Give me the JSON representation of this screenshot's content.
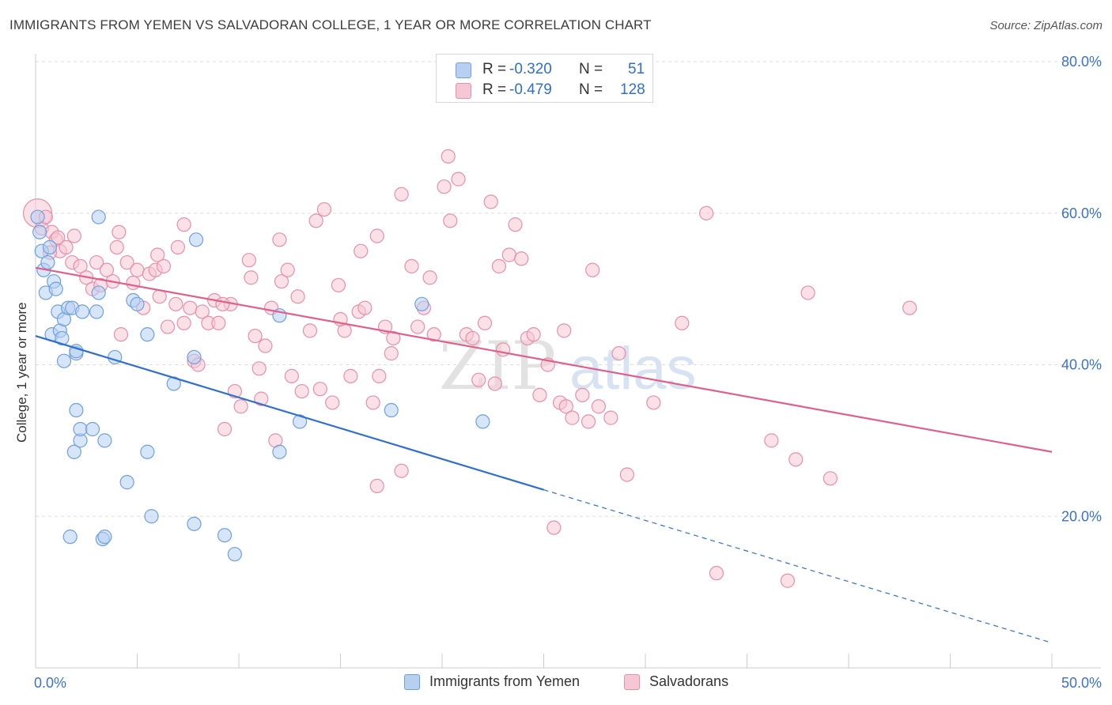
{
  "title": "IMMIGRANTS FROM YEMEN VS SALVADORAN COLLEGE, 1 YEAR OR MORE CORRELATION CHART",
  "source": "Source: ZipAtlas.com",
  "watermark": "ZIPatlas",
  "colors": {
    "blue": "#6fa0de",
    "blue_fill": "#b7d0f2",
    "blue_line": "#2f6fce",
    "pink": "#e88fab",
    "pink_fill": "#f6c6d4",
    "pink_line": "#e0608b",
    "axis_text": "#3a72cc",
    "grid": "#dddddd"
  },
  "stats": {
    "rows": [
      {
        "r_label": "R =",
        "r_value": "-0.320",
        "n_label": "N =",
        "n_value": "51"
      },
      {
        "r_label": "R =",
        "r_value": "-0.479",
        "n_label": "N =",
        "n_value": "128"
      }
    ]
  },
  "legend": {
    "series1": "Immigrants from Yemen",
    "series2": "Salvadorans"
  },
  "chart_data": {
    "type": "scatter",
    "title": "IMMIGRANTS FROM YEMEN VS SALVADORAN COLLEGE, 1 YEAR OR MORE CORRELATION CHART",
    "xlabel": "",
    "ylabel": "College, 1 year or more",
    "xlim": [
      0,
      50
    ],
    "ylim": [
      0,
      80
    ],
    "x_tick_labels": [
      "0.0%",
      "50.0%"
    ],
    "y_tick_labels": [
      "20.0%",
      "40.0%",
      "60.0%",
      "80.0%"
    ],
    "y_ticks": [
      20,
      40,
      60,
      80
    ],
    "grid": true,
    "legend_position": "bottom",
    "series": [
      {
        "name": "Immigrants from Yemen",
        "color": "#6fa0de",
        "trend": {
          "x0": 0,
          "y0": 43.8,
          "x1": 25,
          "y1": 23.5,
          "dashed_to_x": 50,
          "dashed_to_y": 3.3
        },
        "points": [
          [
            0.1,
            59.5
          ],
          [
            0.2,
            57.5
          ],
          [
            0.3,
            55.0
          ],
          [
            0.4,
            52.5
          ],
          [
            0.5,
            49.5
          ],
          [
            0.6,
            53.5
          ],
          [
            0.7,
            55.5
          ],
          [
            0.8,
            44.0
          ],
          [
            0.9,
            51.0
          ],
          [
            1.0,
            50.0
          ],
          [
            1.1,
            47.0
          ],
          [
            1.2,
            44.5
          ],
          [
            1.3,
            43.5
          ],
          [
            1.4,
            46.0
          ],
          [
            1.4,
            40.5
          ],
          [
            1.6,
            47.5
          ],
          [
            1.8,
            47.5
          ],
          [
            1.9,
            28.5
          ],
          [
            2.0,
            41.5
          ],
          [
            2.0,
            34.0
          ],
          [
            2.2,
            30.0
          ],
          [
            2.2,
            31.5
          ],
          [
            2.3,
            47.0
          ],
          [
            2.8,
            31.5
          ],
          [
            3.0,
            47.0
          ],
          [
            3.1,
            49.5
          ],
          [
            3.1,
            59.5
          ],
          [
            3.3,
            17.0
          ],
          [
            3.4,
            17.3
          ],
          [
            3.4,
            30.0
          ],
          [
            3.9,
            41.0
          ],
          [
            4.5,
            24.5
          ],
          [
            4.8,
            48.5
          ],
          [
            5.0,
            48.0
          ],
          [
            5.5,
            44.0
          ],
          [
            5.5,
            28.5
          ],
          [
            5.7,
            20.0
          ],
          [
            6.8,
            37.5
          ],
          [
            7.8,
            41.0
          ],
          [
            7.8,
            19.0
          ],
          [
            7.9,
            56.5
          ],
          [
            9.3,
            17.5
          ],
          [
            9.8,
            15.0
          ],
          [
            12.0,
            46.5
          ],
          [
            12.0,
            28.5
          ],
          [
            13.0,
            32.5
          ],
          [
            17.5,
            34.0
          ],
          [
            19.0,
            48.0
          ],
          [
            22.0,
            32.5
          ],
          [
            1.7,
            17.3
          ],
          [
            2.0,
            41.8
          ]
        ]
      },
      {
        "name": "Salvadorans",
        "color": "#e88fab",
        "trend": {
          "x0": 0,
          "y0": 52.8,
          "x1": 50,
          "y1": 28.5
        },
        "points": [
          [
            0.1,
            60.0
          ],
          [
            0.3,
            58.0
          ],
          [
            0.5,
            59.5
          ],
          [
            0.8,
            57.5
          ],
          [
            1.0,
            56.5
          ],
          [
            1.2,
            55.0
          ],
          [
            1.5,
            55.5
          ],
          [
            1.8,
            53.5
          ],
          [
            1.9,
            57.0
          ],
          [
            2.2,
            53.0
          ],
          [
            2.5,
            51.5
          ],
          [
            2.8,
            50.0
          ],
          [
            3.0,
            53.5
          ],
          [
            3.2,
            50.5
          ],
          [
            3.5,
            52.5
          ],
          [
            3.8,
            51.0
          ],
          [
            4.1,
            57.5
          ],
          [
            4.2,
            44.0
          ],
          [
            4.5,
            53.5
          ],
          [
            4.8,
            50.8
          ],
          [
            5.0,
            52.5
          ],
          [
            5.3,
            47.5
          ],
          [
            5.6,
            52.0
          ],
          [
            5.9,
            52.5
          ],
          [
            6.1,
            49.0
          ],
          [
            6.3,
            53.0
          ],
          [
            6.5,
            45.0
          ],
          [
            6.9,
            48.0
          ],
          [
            7.0,
            55.5
          ],
          [
            7.3,
            45.5
          ],
          [
            7.6,
            47.5
          ],
          [
            7.8,
            40.5
          ],
          [
            8.0,
            40.0
          ],
          [
            8.2,
            47.0
          ],
          [
            8.5,
            45.5
          ],
          [
            8.8,
            48.5
          ],
          [
            9.0,
            45.5
          ],
          [
            9.3,
            31.5
          ],
          [
            9.6,
            48.0
          ],
          [
            9.8,
            36.5
          ],
          [
            10.1,
            34.5
          ],
          [
            10.5,
            53.8
          ],
          [
            10.6,
            51.5
          ],
          [
            10.8,
            43.8
          ],
          [
            11.1,
            35.5
          ],
          [
            11.3,
            42.5
          ],
          [
            11.6,
            47.5
          ],
          [
            11.8,
            30.0
          ],
          [
            12.1,
            51.0
          ],
          [
            12.4,
            52.5
          ],
          [
            12.6,
            38.5
          ],
          [
            12.9,
            49.0
          ],
          [
            13.1,
            36.5
          ],
          [
            13.5,
            44.5
          ],
          [
            13.8,
            59.0
          ],
          [
            14.0,
            36.8
          ],
          [
            14.2,
            60.5
          ],
          [
            14.6,
            35.0
          ],
          [
            14.9,
            50.5
          ],
          [
            15.2,
            44.5
          ],
          [
            15.5,
            38.5
          ],
          [
            15.9,
            47.0
          ],
          [
            16.0,
            55.0
          ],
          [
            16.2,
            47.5
          ],
          [
            16.6,
            35.0
          ],
          [
            16.9,
            38.5
          ],
          [
            16.8,
            24.0
          ],
          [
            17.2,
            45.0
          ],
          [
            17.5,
            41.5
          ],
          [
            17.6,
            43.5
          ],
          [
            18.0,
            26.0
          ],
          [
            18.5,
            53.0
          ],
          [
            18.8,
            45.0
          ],
          [
            19.1,
            47.5
          ],
          [
            19.4,
            51.5
          ],
          [
            19.6,
            44.0
          ],
          [
            20.1,
            63.5
          ],
          [
            20.4,
            59.0
          ],
          [
            20.8,
            64.5
          ],
          [
            21.2,
            44.0
          ],
          [
            21.5,
            43.5
          ],
          [
            21.8,
            38.0
          ],
          [
            22.1,
            45.5
          ],
          [
            22.4,
            61.5
          ],
          [
            22.6,
            37.5
          ],
          [
            22.8,
            53.0
          ],
          [
            23.0,
            42.0
          ],
          [
            23.3,
            54.5
          ],
          [
            23.6,
            58.5
          ],
          [
            23.9,
            54.0
          ],
          [
            24.2,
            43.5
          ],
          [
            24.5,
            44.0
          ],
          [
            24.8,
            36.0
          ],
          [
            25.2,
            40.0
          ],
          [
            25.5,
            18.5
          ],
          [
            25.8,
            35.0
          ],
          [
            26.1,
            34.5
          ],
          [
            26.4,
            33.0
          ],
          [
            26.9,
            36.0
          ],
          [
            27.2,
            32.5
          ],
          [
            27.4,
            52.5
          ],
          [
            27.7,
            34.5
          ],
          [
            28.3,
            33.0
          ],
          [
            28.7,
            41.5
          ],
          [
            29.1,
            25.5
          ],
          [
            30.4,
            35.0
          ],
          [
            31.8,
            45.5
          ],
          [
            33.0,
            60.0
          ],
          [
            33.5,
            12.5
          ],
          [
            36.2,
            30.0
          ],
          [
            37.4,
            27.5
          ],
          [
            38.0,
            49.5
          ],
          [
            39.1,
            25.0
          ],
          [
            37.0,
            11.5
          ],
          [
            43.0,
            47.5
          ],
          [
            20.3,
            67.5
          ],
          [
            18.0,
            62.5
          ],
          [
            16.8,
            57.0
          ],
          [
            15.0,
            46.0
          ],
          [
            11.0,
            39.5
          ],
          [
            9.2,
            48.0
          ],
          [
            7.3,
            58.5
          ],
          [
            6.0,
            54.5
          ],
          [
            4.0,
            55.5
          ],
          [
            1.1,
            56.8
          ],
          [
            0.7,
            54.8
          ],
          [
            12.0,
            56.5
          ],
          [
            26.0,
            44.5
          ]
        ]
      }
    ]
  }
}
